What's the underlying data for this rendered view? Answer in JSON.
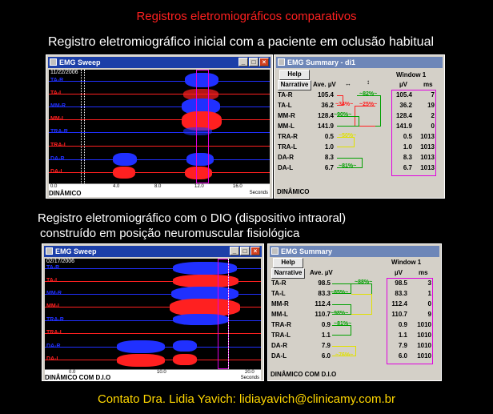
{
  "page": {
    "title": "Registros eletromiográficos comparativos",
    "subtitle_initial": "Registro eletromiográfico inicial com a paciente em oclusão habitual",
    "subtitle_dio_line1": "Registro eletromiográfico com o DIO (dispositivo intraoral)",
    "subtitle_dio_line2": " construído em posição neuromuscular fisiológica",
    "contact": "Contato  Dra. Lidia Yavich:  lidiayavich@clinicamy.com.br"
  },
  "panel1": {
    "sweep": {
      "title": "EMG Sweep",
      "date": "11/22/2006",
      "channels": [
        {
          "label": "TA-R",
          "color": "#2030ff"
        },
        {
          "label": "TA-L",
          "color": "#ff2020"
        },
        {
          "label": "MM-R",
          "color": "#2030ff"
        },
        {
          "label": "MM-L",
          "color": "#ff2020"
        },
        {
          "label": "TRA-R",
          "color": "#2030ff"
        },
        {
          "label": "TRA-L",
          "color": "#ff2020"
        },
        {
          "label": "DA-R",
          "color": "#2030ff"
        },
        {
          "label": "DA-L",
          "color": "#ff2020"
        }
      ],
      "ticks": [
        "0.0",
        "4.0",
        "8.0",
        "12.0",
        "16.0"
      ],
      "axis_unit": "Seconds",
      "mode": "DINÂMICO"
    },
    "summary": {
      "title": "EMG Summary - di1",
      "help": "Help",
      "narrative": "Narrative",
      "col_ave": "Ave. µV",
      "col_arrows_h": "↔",
      "col_arrows_v": "↕",
      "window_title": "Window 1",
      "col_uv": "µV",
      "col_ms": "ms",
      "rows": [
        {
          "label": "TA-R",
          "ave": "105.4",
          "uv": "105.4",
          "ms": "7"
        },
        {
          "label": "TA-L",
          "ave": "36.2",
          "uv": "36.2",
          "ms": "19"
        },
        {
          "label": "MM-R",
          "ave": "128.4",
          "uv": "128.4",
          "ms": "2"
        },
        {
          "label": "MM-L",
          "ave": "141.9",
          "uv": "141.9",
          "ms": "0"
        },
        {
          "label": "TRA-R",
          "ave": "0.5",
          "uv": "0.5",
          "ms": "1013"
        },
        {
          "label": "TRA-L",
          "ave": "1.0",
          "uv": "1.0",
          "ms": "1013"
        },
        {
          "label": "DA-R",
          "ave": "8.3",
          "uv": "8.3",
          "ms": "1013"
        },
        {
          "label": "DA-L",
          "ave": "6.7",
          "uv": "6.7",
          "ms": "1013"
        }
      ],
      "pcts": [
        {
          "text": "~34%~",
          "color": "#ff2020"
        },
        {
          "text": "~82%~",
          "color": "#00a000"
        },
        {
          "text": "~25%~",
          "color": "#ff2020"
        },
        {
          "text": "~90%~",
          "color": "#00a000"
        },
        {
          "text": "~50%~",
          "color": "#e0e000"
        },
        {
          "text": "~81%~",
          "color": "#00a000"
        }
      ],
      "mode": "DINÂMICO"
    }
  },
  "panel2": {
    "sweep": {
      "title": "EMG Sweep",
      "date": "02/17/2006",
      "channels": [
        {
          "label": "TA-R",
          "color": "#2030ff"
        },
        {
          "label": "TA-L",
          "color": "#ff2020"
        },
        {
          "label": "MM-R",
          "color": "#2030ff"
        },
        {
          "label": "MM-L",
          "color": "#ff2020"
        },
        {
          "label": "TRA-R",
          "color": "#2030ff"
        },
        {
          "label": "TRA-L",
          "color": "#ff2020"
        },
        {
          "label": "DA-R",
          "color": "#2030ff"
        },
        {
          "label": "DA-L",
          "color": "#ff2020"
        }
      ],
      "ticks": [
        "0.0",
        "10.0",
        "20.0"
      ],
      "axis_unit": "Seconds",
      "mode": "DINÂMICO COM D.I.O"
    },
    "summary": {
      "title": "EMG Summary",
      "help": "Help",
      "narrative": "Narrative",
      "col_ave": "Ave. µV",
      "window_title": "Window 1",
      "col_uv": "µV",
      "col_ms": "ms",
      "rows": [
        {
          "label": "TA-R",
          "ave": "98.5",
          "uv": "98.5",
          "ms": "3"
        },
        {
          "label": "TA-L",
          "ave": "83.3",
          "uv": "83.3",
          "ms": "1"
        },
        {
          "label": "MM-R",
          "ave": "112.4",
          "uv": "112.4",
          "ms": "0"
        },
        {
          "label": "MM-L",
          "ave": "110.7",
          "uv": "110.7",
          "ms": "9"
        },
        {
          "label": "TRA-R",
          "ave": "0.9",
          "uv": "0.9",
          "ms": "1010"
        },
        {
          "label": "TRA-L",
          "ave": "1.1",
          "uv": "1.1",
          "ms": "1010"
        },
        {
          "label": "DA-R",
          "ave": "7.9",
          "uv": "7.9",
          "ms": "1010"
        },
        {
          "label": "DA-L",
          "ave": "6.0",
          "uv": "6.0",
          "ms": "1010"
        }
      ],
      "pcts": [
        {
          "text": "~85%~",
          "color": "#00a000"
        },
        {
          "text": "~88%~",
          "color": "#00a000"
        },
        {
          "text": "~98%~",
          "color": "#00a000"
        },
        {
          "text": "~81%~",
          "color": "#00a000"
        },
        {
          "text": "~76%~",
          "color": "#e0e000"
        }
      ],
      "mode": "DINÂMICO COM D.I.O"
    }
  }
}
